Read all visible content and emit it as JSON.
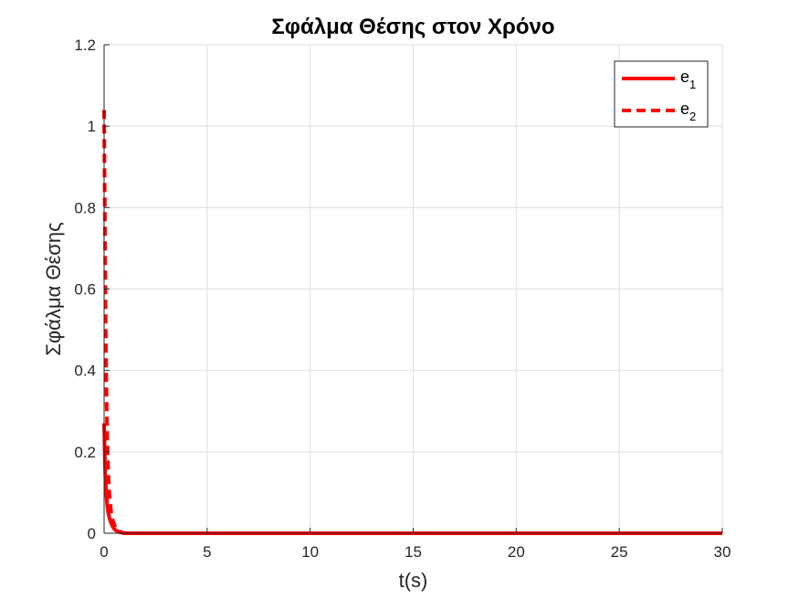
{
  "chart_data": {
    "type": "line",
    "title": "Σφάλμα Θέσης στον Χρόνο",
    "xlabel": "t(s)",
    "ylabel": "Σφάλμα Θέσης",
    "xlim": [
      0,
      30
    ],
    "ylim": [
      0,
      1.2
    ],
    "xticks": [
      "0",
      "5",
      "10",
      "15",
      "20",
      "25",
      "30"
    ],
    "yticks": [
      "0",
      "0.2",
      "0.4",
      "0.6",
      "0.8",
      "1",
      "1.2"
    ],
    "grid": true,
    "legend_position": "top-right",
    "series": [
      {
        "name": "e",
        "name_subscript": "1",
        "style": "solid",
        "color": "#ff0000",
        "x": [
          0,
          0.03,
          0.06,
          0.1,
          0.15,
          0.2,
          0.3,
          0.4,
          0.5,
          0.6,
          0.8,
          1.0,
          2,
          5,
          10,
          15,
          20,
          25,
          30
        ],
        "y": [
          0.27,
          0.2,
          0.14,
          0.1,
          0.07,
          0.05,
          0.03,
          0.018,
          0.01,
          0.006,
          0.002,
          0,
          0,
          0,
          0,
          0,
          0,
          0,
          0
        ]
      },
      {
        "name": "e",
        "name_subscript": "2",
        "style": "dashed",
        "color": "#ff0000",
        "x": [
          0,
          0.02,
          0.05,
          0.08,
          0.1,
          0.13,
          0.16,
          0.2,
          0.25,
          0.3,
          0.35,
          0.4,
          0.5,
          0.6,
          0.8,
          1.0,
          2,
          5,
          10,
          15,
          20,
          25,
          30
        ],
        "y": [
          1.04,
          0.9,
          0.7,
          0.5,
          0.4,
          0.3,
          0.22,
          0.15,
          0.1,
          0.07,
          0.05,
          0.035,
          0.02,
          0.01,
          0.003,
          0,
          0,
          0,
          0,
          0,
          0,
          0,
          0
        ]
      }
    ]
  }
}
